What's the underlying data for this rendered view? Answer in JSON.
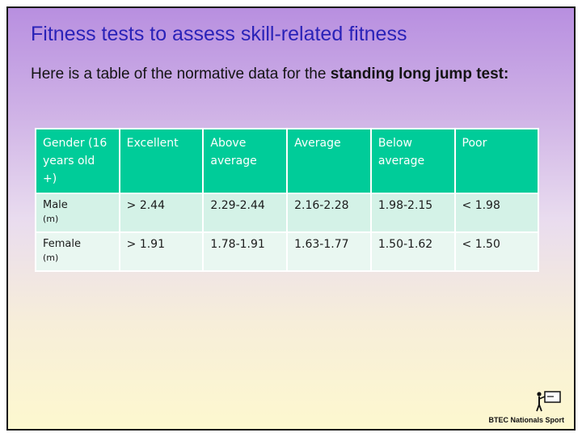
{
  "slide": {
    "title": "Fitness tests to assess skill-related fitness",
    "intro_text": "Here is a table of the normative data for the ",
    "intro_bold": "standing long jump test:"
  },
  "table": {
    "headers": [
      "Gender (16 years old +)",
      "Excellent",
      "Above average",
      "Average",
      "Below average",
      "Poor"
    ],
    "rows": [
      {
        "gender": "Male",
        "unit": "(m)",
        "values": [
          "> 2.44",
          "2.29-2.44",
          "2.16-2.28",
          "1.98-2.15",
          "< 1.98"
        ]
      },
      {
        "gender": "Female",
        "unit": "(m)",
        "values": [
          "> 1.91",
          "1.78-1.91",
          "1.63-1.77",
          "1.50-1.62",
          "< 1.50"
        ]
      }
    ]
  },
  "logo": {
    "text": "BTEC Nationals Sport",
    "icon": "teacher-at-board-icon"
  },
  "colors": {
    "title": "#2a22b8",
    "header_bg": "#00cc99",
    "row_male": "#d4f2e7",
    "row_female": "#e9f7f1"
  }
}
